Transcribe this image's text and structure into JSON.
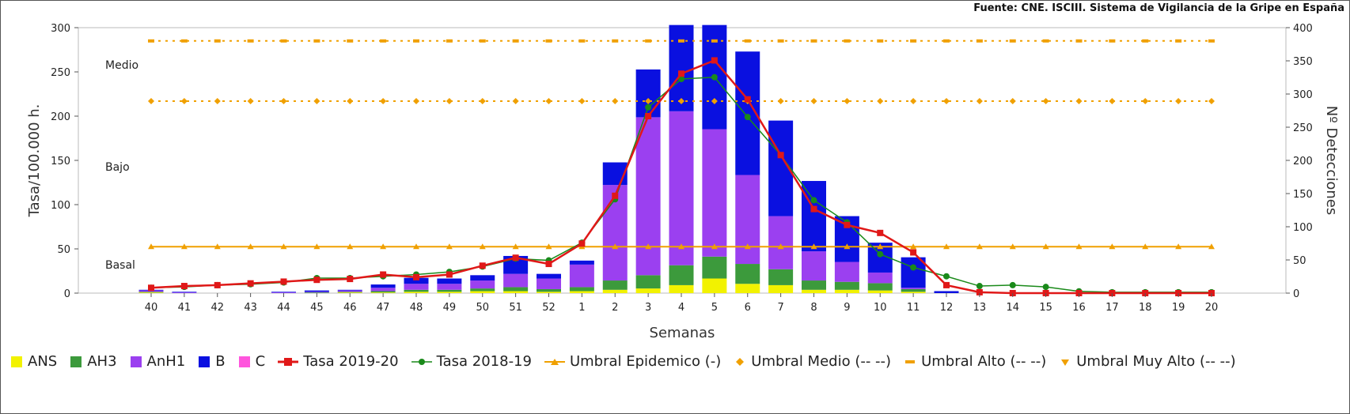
{
  "source_note": "Fuente: CNE. ISCIII. Sistema de Vigilancia de la Gripe en España",
  "colors": {
    "ANS": "#f2f200",
    "AH3": "#3c9a3c",
    "AnH1": "#9b40f0",
    "B": "#0a10e0",
    "C": "#ff55dd",
    "tasa_2019_20": "#e01818",
    "tasa_2018_19": "#1a8a1a",
    "umbral": "#f0a000"
  },
  "legend": [
    {
      "key": "ANS",
      "label": "ANS",
      "kind": "box"
    },
    {
      "key": "AH3",
      "label": "AH3",
      "kind": "box"
    },
    {
      "key": "AnH1",
      "label": "AnH1",
      "kind": "box"
    },
    {
      "key": "B",
      "label": "B",
      "kind": "box"
    },
    {
      "key": "C",
      "label": "C",
      "kind": "box"
    },
    {
      "key": "tasa_2019_20",
      "label": "Tasa 2019-20",
      "kind": "line-square"
    },
    {
      "key": "tasa_2018_19",
      "label": "Tasa 2018-19",
      "kind": "line-dot"
    },
    {
      "key": "umbral",
      "label": "Umbral Epidemico (-)",
      "kind": "line-tri"
    },
    {
      "key": "umbral",
      "label": "Umbral Medio (-- --)",
      "kind": "diamond"
    },
    {
      "key": "umbral",
      "label": "Umbral Alto (-- --)",
      "kind": "dash"
    },
    {
      "key": "umbral",
      "label": "Umbral Muy Alto (-- --)",
      "kind": "tri"
    }
  ],
  "chart_data": {
    "type": "bar",
    "xlabel": "Semanas",
    "ylabel": "Tasa/100.000 h.",
    "y2label": "Nº Detecciones",
    "ylim": [
      0,
      300
    ],
    "y2lim": [
      0,
      400
    ],
    "yticks": [
      0,
      50,
      100,
      150,
      200,
      250,
      300
    ],
    "y2ticks": [
      0,
      50,
      100,
      150,
      200,
      250,
      300,
      350,
      400
    ],
    "categories": [
      "40",
      "41",
      "42",
      "43",
      "44",
      "45",
      "46",
      "47",
      "48",
      "49",
      "50",
      "51",
      "52",
      "1",
      "2",
      "3",
      "4",
      "5",
      "6",
      "7",
      "8",
      "9",
      "10",
      "11",
      "12",
      "13",
      "14",
      "15",
      "16",
      "17",
      "18",
      "19",
      "20"
    ],
    "bands": [
      {
        "label": "Medio",
        "y": 258
      },
      {
        "label": "Bajo",
        "y": 143
      },
      {
        "label": "Basal",
        "y": 32
      }
    ],
    "detections_series": [
      {
        "name": "ANS",
        "values": [
          1,
          0,
          0,
          0,
          0,
          0,
          1,
          1,
          2,
          2,
          3,
          3,
          2,
          3,
          5,
          7,
          12,
          22,
          14,
          12,
          5,
          5,
          4,
          2,
          0,
          0,
          0,
          0,
          0,
          0,
          0,
          0,
          0
        ]
      },
      {
        "name": "AH3",
        "values": [
          1,
          0,
          0,
          0,
          0,
          1,
          1,
          2,
          3,
          3,
          4,
          6,
          4,
          6,
          14,
          20,
          30,
          33,
          30,
          24,
          14,
          12,
          11,
          4,
          0,
          0,
          0,
          0,
          0,
          0,
          0,
          0,
          0
        ]
      },
      {
        "name": "AnH1",
        "values": [
          2,
          1,
          0,
          0,
          1,
          1,
          2,
          5,
          9,
          9,
          12,
          20,
          16,
          34,
          144,
          238,
          232,
          192,
          134,
          80,
          44,
          30,
          16,
          2,
          0,
          0,
          0,
          0,
          0,
          0,
          0,
          0,
          0
        ]
      },
      {
        "name": "B",
        "values": [
          1,
          1,
          0,
          0,
          1,
          2,
          1,
          5,
          9,
          8,
          8,
          27,
          7,
          6,
          34,
          72,
          130,
          157,
          186,
          144,
          106,
          69,
          45,
          46,
          3,
          0,
          0,
          0,
          0,
          0,
          0,
          0,
          0
        ]
      },
      {
        "name": "C",
        "values": [
          0,
          0,
          0,
          0,
          0,
          0,
          0,
          0,
          0,
          0,
          0,
          0,
          0,
          0,
          0,
          0,
          0,
          0,
          0,
          0,
          0,
          0,
          0,
          0,
          0,
          0,
          0,
          0,
          0,
          0,
          0,
          0,
          0
        ]
      }
    ],
    "rate_series": [
      {
        "name": "Tasa 2019-20",
        "values": [
          6,
          8,
          9,
          11,
          13,
          15,
          16,
          21,
          18,
          21,
          31,
          40,
          33,
          56,
          110,
          200,
          248,
          263,
          219,
          156,
          95,
          77,
          68,
          46,
          9,
          1,
          0,
          0,
          0,
          0,
          0,
          0,
          0
        ]
      },
      {
        "name": "Tasa 2018-19",
        "values": [
          6,
          7,
          9,
          10,
          12,
          17,
          17,
          19,
          21,
          24,
          30,
          39,
          37,
          57,
          106,
          210,
          242,
          244,
          199,
          156,
          105,
          80,
          44,
          29,
          19,
          8,
          9,
          7,
          2,
          1,
          1,
          1,
          1
        ]
      }
    ],
    "thresholds": [
      {
        "name": "Umbral Epidemico (-)",
        "value": 52.5
      },
      {
        "name": "Umbral Medio (-- --)",
        "value": 217
      },
      {
        "name": "Umbral Alto (-- --)",
        "value": 285
      }
    ]
  }
}
